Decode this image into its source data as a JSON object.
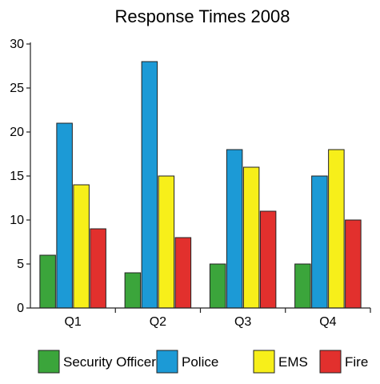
{
  "chart_data": {
    "type": "bar",
    "title": "Response Times 2008",
    "xlabel": "",
    "ylabel": "",
    "ylim": [
      0,
      30
    ],
    "yticks": [
      0,
      5,
      10,
      15,
      20,
      25,
      30
    ],
    "grid": false,
    "legend_position": "bottom",
    "categories": [
      "Q1",
      "Q2",
      "Q3",
      "Q4"
    ],
    "series": [
      {
        "name": "Security Officer",
        "color": "#3ba53b",
        "values": [
          6,
          4,
          5,
          5
        ]
      },
      {
        "name": "Police",
        "color": "#1c9ad6",
        "values": [
          21,
          28,
          18,
          15
        ]
      },
      {
        "name": "EMS",
        "color": "#f7ef1a",
        "values": [
          14,
          15,
          16,
          18
        ]
      },
      {
        "name": "Fire",
        "color": "#e2302d",
        "values": [
          9,
          8,
          11,
          10
        ]
      }
    ]
  }
}
